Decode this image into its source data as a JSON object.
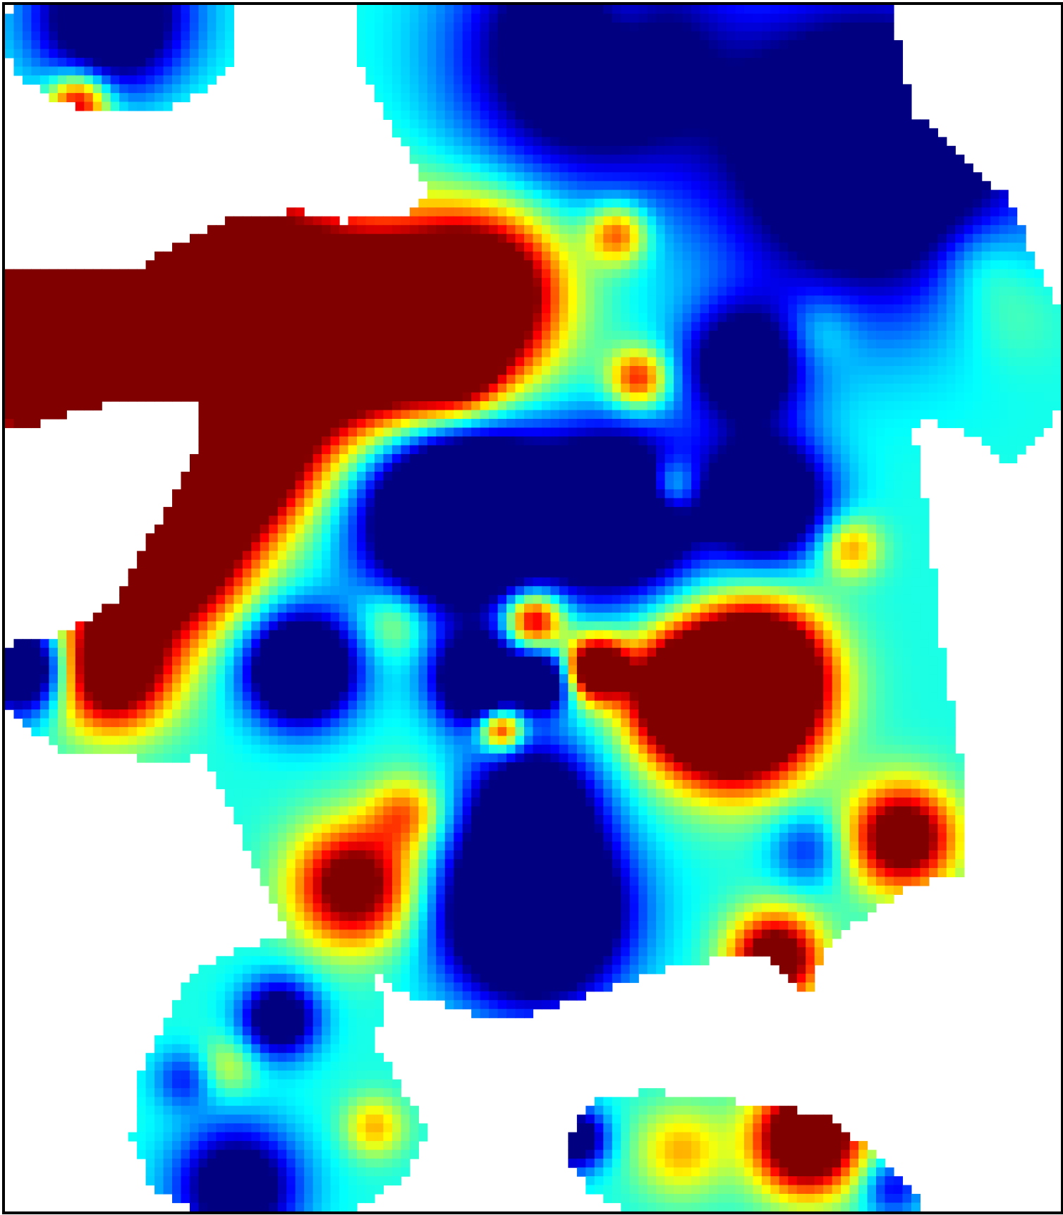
{
  "chart_data": {
    "type": "heatmap",
    "title": "",
    "xlabel": "",
    "ylabel": "",
    "colormap": "jet",
    "colors": {
      "background": "#ffffff",
      "frame": "#000000",
      "low": "#00008f",
      "high": "#800000"
    },
    "grid": false,
    "legend": "none",
    "axes_visible": false,
    "value_range": [
      0,
      1
    ],
    "base_value": 0.4,
    "bumps": [
      {
        "x": 0.55,
        "y": 0.04,
        "sigma": 0.08,
        "amplitude": -0.7
      },
      {
        "x": 0.82,
        "y": 0.12,
        "sigma": 0.1,
        "amplitude": -0.8
      },
      {
        "x": 0.95,
        "y": 0.25,
        "sigma": 0.04,
        "amplitude": 0.12
      },
      {
        "x": 0.1,
        "y": 0.01,
        "sigma": 0.05,
        "amplitude": -0.7
      },
      {
        "x": 0.07,
        "y": 0.08,
        "sigma": 0.02,
        "amplitude": 0.6
      },
      {
        "x": 0.58,
        "y": 0.01,
        "sigma": 0.03,
        "amplitude": 0.25
      },
      {
        "x": 0.06,
        "y": 0.27,
        "sigma": 0.08,
        "amplitude": 1.3
      },
      {
        "x": 0.24,
        "y": 0.27,
        "sigma": 0.08,
        "amplitude": 1.4
      },
      {
        "x": 0.4,
        "y": 0.27,
        "sigma": 0.06,
        "amplitude": 1.1
      },
      {
        "x": 0.46,
        "y": 0.23,
        "sigma": 0.05,
        "amplitude": 0.6
      },
      {
        "x": 0.2,
        "y": 0.38,
        "sigma": 0.05,
        "amplitude": 1.1
      },
      {
        "x": 0.15,
        "y": 0.46,
        "sigma": 0.05,
        "amplitude": 1.0
      },
      {
        "x": 0.1,
        "y": 0.55,
        "sigma": 0.04,
        "amplitude": 0.9
      },
      {
        "x": 0.58,
        "y": 0.19,
        "sigma": 0.02,
        "amplitude": 0.45
      },
      {
        "x": 0.6,
        "y": 0.31,
        "sigma": 0.02,
        "amplitude": 0.5
      },
      {
        "x": 0.43,
        "y": 0.31,
        "sigma": 0.025,
        "amplitude": 0.25
      },
      {
        "x": 0.63,
        "y": 0.4,
        "sigma": 0.02,
        "amplitude": 0.45
      },
      {
        "x": 0.8,
        "y": 0.45,
        "sigma": 0.02,
        "amplitude": 0.35
      },
      {
        "x": 0.92,
        "y": 0.21,
        "sigma": 0.03,
        "amplitude": 0.15
      },
      {
        "x": 0.77,
        "y": 0.27,
        "sigma": 0.025,
        "amplitude": 0.15
      },
      {
        "x": 0.43,
        "y": 0.42,
        "sigma": 0.06,
        "amplitude": -1.2
      },
      {
        "x": 0.58,
        "y": 0.42,
        "sigma": 0.05,
        "amplitude": -1.0
      },
      {
        "x": 0.72,
        "y": 0.41,
        "sigma": 0.04,
        "amplitude": -0.8
      },
      {
        "x": 0.7,
        "y": 0.3,
        "sigma": 0.04,
        "amplitude": -0.6
      },
      {
        "x": 0.28,
        "y": 0.55,
        "sigma": 0.035,
        "amplitude": -0.9
      },
      {
        "x": 0.45,
        "y": 0.56,
        "sigma": 0.03,
        "amplitude": -0.8
      },
      {
        "x": 0.51,
        "y": 0.56,
        "sigma": 0.02,
        "amplitude": -0.6
      },
      {
        "x": 0.02,
        "y": 0.55,
        "sigma": 0.03,
        "amplitude": -0.8
      },
      {
        "x": 0.37,
        "y": 0.51,
        "sigma": 0.025,
        "amplitude": 0.25
      },
      {
        "x": 0.5,
        "y": 0.51,
        "sigma": 0.02,
        "amplitude": 0.7
      },
      {
        "x": 0.56,
        "y": 0.55,
        "sigma": 0.02,
        "amplitude": 1.0
      },
      {
        "x": 0.47,
        "y": 0.6,
        "sigma": 0.015,
        "amplitude": 0.7
      },
      {
        "x": 0.69,
        "y": 0.58,
        "sigma": 0.05,
        "amplitude": 1.4
      },
      {
        "x": 0.72,
        "y": 0.55,
        "sigma": 0.04,
        "amplitude": 0.7
      },
      {
        "x": 0.64,
        "y": 0.57,
        "sigma": 0.035,
        "amplitude": 0.6
      },
      {
        "x": 0.85,
        "y": 0.69,
        "sigma": 0.035,
        "amplitude": 0.8
      },
      {
        "x": 0.73,
        "y": 0.79,
        "sigma": 0.03,
        "amplitude": 0.8
      },
      {
        "x": 0.33,
        "y": 0.73,
        "sigma": 0.04,
        "amplitude": 0.75
      },
      {
        "x": 0.38,
        "y": 0.67,
        "sigma": 0.025,
        "amplitude": 0.35
      },
      {
        "x": 0.76,
        "y": 0.7,
        "sigma": 0.025,
        "amplitude": -0.25
      },
      {
        "x": 0.5,
        "y": 0.75,
        "sigma": 0.055,
        "amplitude": -1.2
      },
      {
        "x": 0.5,
        "y": 0.66,
        "sigma": 0.04,
        "amplitude": -0.6
      },
      {
        "x": 0.26,
        "y": 0.84,
        "sigma": 0.025,
        "amplitude": -0.6
      },
      {
        "x": 0.17,
        "y": 0.89,
        "sigma": 0.02,
        "amplitude": -0.25
      },
      {
        "x": 0.22,
        "y": 0.98,
        "sigma": 0.04,
        "amplitude": -0.6
      },
      {
        "x": 0.35,
        "y": 0.93,
        "sigma": 0.02,
        "amplitude": 0.3
      },
      {
        "x": 0.21,
        "y": 0.88,
        "sigma": 0.02,
        "amplitude": 0.2
      },
      {
        "x": 0.76,
        "y": 0.94,
        "sigma": 0.035,
        "amplitude": 1.0
      },
      {
        "x": 0.64,
        "y": 0.95,
        "sigma": 0.03,
        "amplitude": 0.3
      },
      {
        "x": 0.54,
        "y": 0.94,
        "sigma": 0.02,
        "amplitude": -0.6
      },
      {
        "x": 0.84,
        "y": 0.98,
        "sigma": 0.02,
        "amplitude": -0.3
      }
    ],
    "data_regions": [
      {
        "shape": "ellipse",
        "cx": 0.11,
        "cy": 0.025,
        "rx": 0.11,
        "ry": 0.065
      },
      {
        "shape": "polygon",
        "points": [
          [
            0.33,
            0.0
          ],
          [
            0.84,
            0.0
          ],
          [
            0.86,
            0.09
          ],
          [
            0.95,
            0.16
          ],
          [
            0.98,
            0.22
          ],
          [
            1.0,
            0.26
          ],
          [
            1.0,
            0.33
          ],
          [
            0.98,
            0.36
          ],
          [
            0.95,
            0.38
          ],
          [
            0.92,
            0.36
          ],
          [
            0.87,
            0.34
          ],
          [
            0.86,
            0.35
          ],
          [
            0.87,
            0.4
          ],
          [
            0.89,
            0.55
          ],
          [
            0.91,
            0.65
          ],
          [
            0.91,
            0.72
          ],
          [
            0.86,
            0.73
          ],
          [
            0.82,
            0.75
          ],
          [
            0.78,
            0.78
          ],
          [
            0.76,
            0.82
          ],
          [
            0.72,
            0.79
          ],
          [
            0.68,
            0.79
          ],
          [
            0.62,
            0.8
          ],
          [
            0.55,
            0.82
          ],
          [
            0.49,
            0.84
          ],
          [
            0.46,
            0.84
          ],
          [
            0.42,
            0.83
          ],
          [
            0.38,
            0.82
          ],
          [
            0.33,
            0.79
          ],
          [
            0.27,
            0.77
          ],
          [
            0.24,
            0.72
          ],
          [
            0.21,
            0.66
          ],
          [
            0.19,
            0.62
          ],
          [
            0.16,
            0.63
          ],
          [
            0.1,
            0.62
          ],
          [
            0.06,
            0.62
          ],
          [
            0.02,
            0.6
          ],
          [
            0.0,
            0.58
          ],
          [
            0.0,
            0.53
          ],
          [
            0.06,
            0.52
          ],
          [
            0.11,
            0.49
          ],
          [
            0.13,
            0.45
          ],
          [
            0.16,
            0.41
          ],
          [
            0.18,
            0.37
          ],
          [
            0.18,
            0.33
          ],
          [
            0.1,
            0.33
          ],
          [
            0.02,
            0.35
          ],
          [
            0.0,
            0.35
          ],
          [
            0.0,
            0.22
          ],
          [
            0.12,
            0.22
          ],
          [
            0.2,
            0.18
          ],
          [
            0.28,
            0.17
          ],
          [
            0.32,
            0.18
          ],
          [
            0.39,
            0.17
          ],
          [
            0.4,
            0.15
          ],
          [
            0.36,
            0.09
          ],
          [
            0.33,
            0.04
          ]
        ]
      },
      {
        "shape": "polygon",
        "points": [
          [
            0.23,
            0.78
          ],
          [
            0.29,
            0.77
          ],
          [
            0.34,
            0.79
          ],
          [
            0.36,
            0.83
          ],
          [
            0.35,
            0.86
          ],
          [
            0.37,
            0.89
          ],
          [
            0.4,
            0.93
          ],
          [
            0.38,
            0.97
          ],
          [
            0.33,
            1.0
          ],
          [
            0.18,
            1.0
          ],
          [
            0.14,
            0.98
          ],
          [
            0.12,
            0.94
          ],
          [
            0.13,
            0.88
          ],
          [
            0.16,
            0.83
          ],
          [
            0.18,
            0.8
          ]
        ]
      },
      {
        "shape": "polygon",
        "points": [
          [
            0.55,
            0.91
          ],
          [
            0.61,
            0.9
          ],
          [
            0.7,
            0.91
          ],
          [
            0.78,
            0.92
          ],
          [
            0.82,
            0.95
          ],
          [
            0.86,
            0.98
          ],
          [
            0.87,
            1.0
          ],
          [
            0.59,
            1.0
          ],
          [
            0.55,
            0.98
          ],
          [
            0.53,
            0.95
          ]
        ]
      }
    ]
  }
}
